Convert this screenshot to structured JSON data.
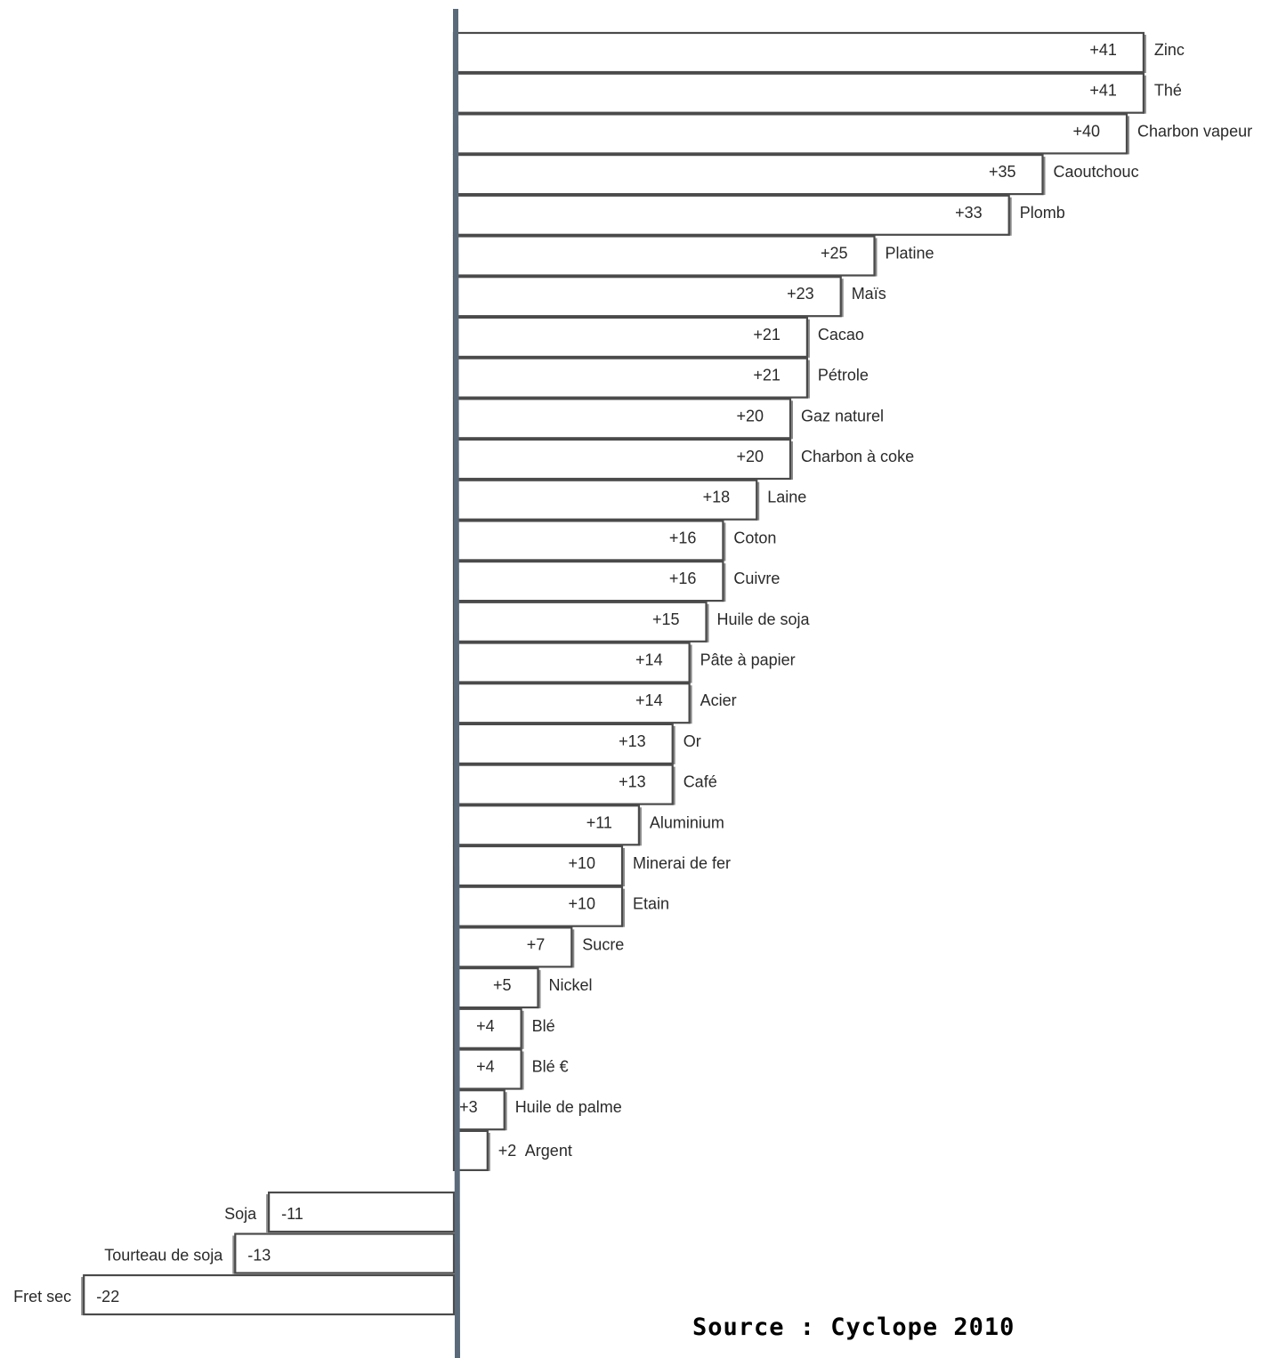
{
  "source": "Source : Cyclope 2010",
  "chart_data": {
    "type": "bar",
    "orientation": "horizontal",
    "categories": [
      "Zinc",
      "Thé",
      "Charbon vapeur",
      "Caoutchouc",
      "Plomb",
      "Platine",
      "Maïs",
      "Cacao",
      "Pétrole",
      "Gaz naturel",
      "Charbon à coke",
      "Laine",
      "Coton",
      "Cuivre",
      "Huile de soja",
      "Pâte à papier",
      "Acier",
      "Or",
      "Café",
      "Aluminium",
      "Minerai de fer",
      "Etain",
      "Sucre",
      "Nickel",
      "Blé",
      "Blé €",
      "Huile de palme",
      "Argent",
      "Soja",
      "Tourteau de soja",
      "Fret sec"
    ],
    "values": [
      41,
      41,
      40,
      35,
      33,
      25,
      23,
      21,
      21,
      20,
      20,
      18,
      16,
      16,
      15,
      14,
      14,
      13,
      13,
      11,
      10,
      10,
      7,
      5,
      4,
      4,
      3,
      2,
      -11,
      -13,
      -22
    ],
    "value_labels": [
      "+41",
      "+41",
      "+40",
      "+35",
      "+33",
      "+25",
      "+23",
      "+21",
      "+21",
      "+20",
      "+20",
      "+18",
      "+16",
      "+16",
      "+15",
      "+14",
      "+14",
      "+13",
      "+13",
      "+11",
      "+10",
      "+10",
      "+7",
      "+5",
      "+4",
      "+4",
      "+3",
      "+2",
      "-11",
      "-13",
      "-22"
    ],
    "xlim": [
      -22,
      41
    ],
    "grid": false
  }
}
